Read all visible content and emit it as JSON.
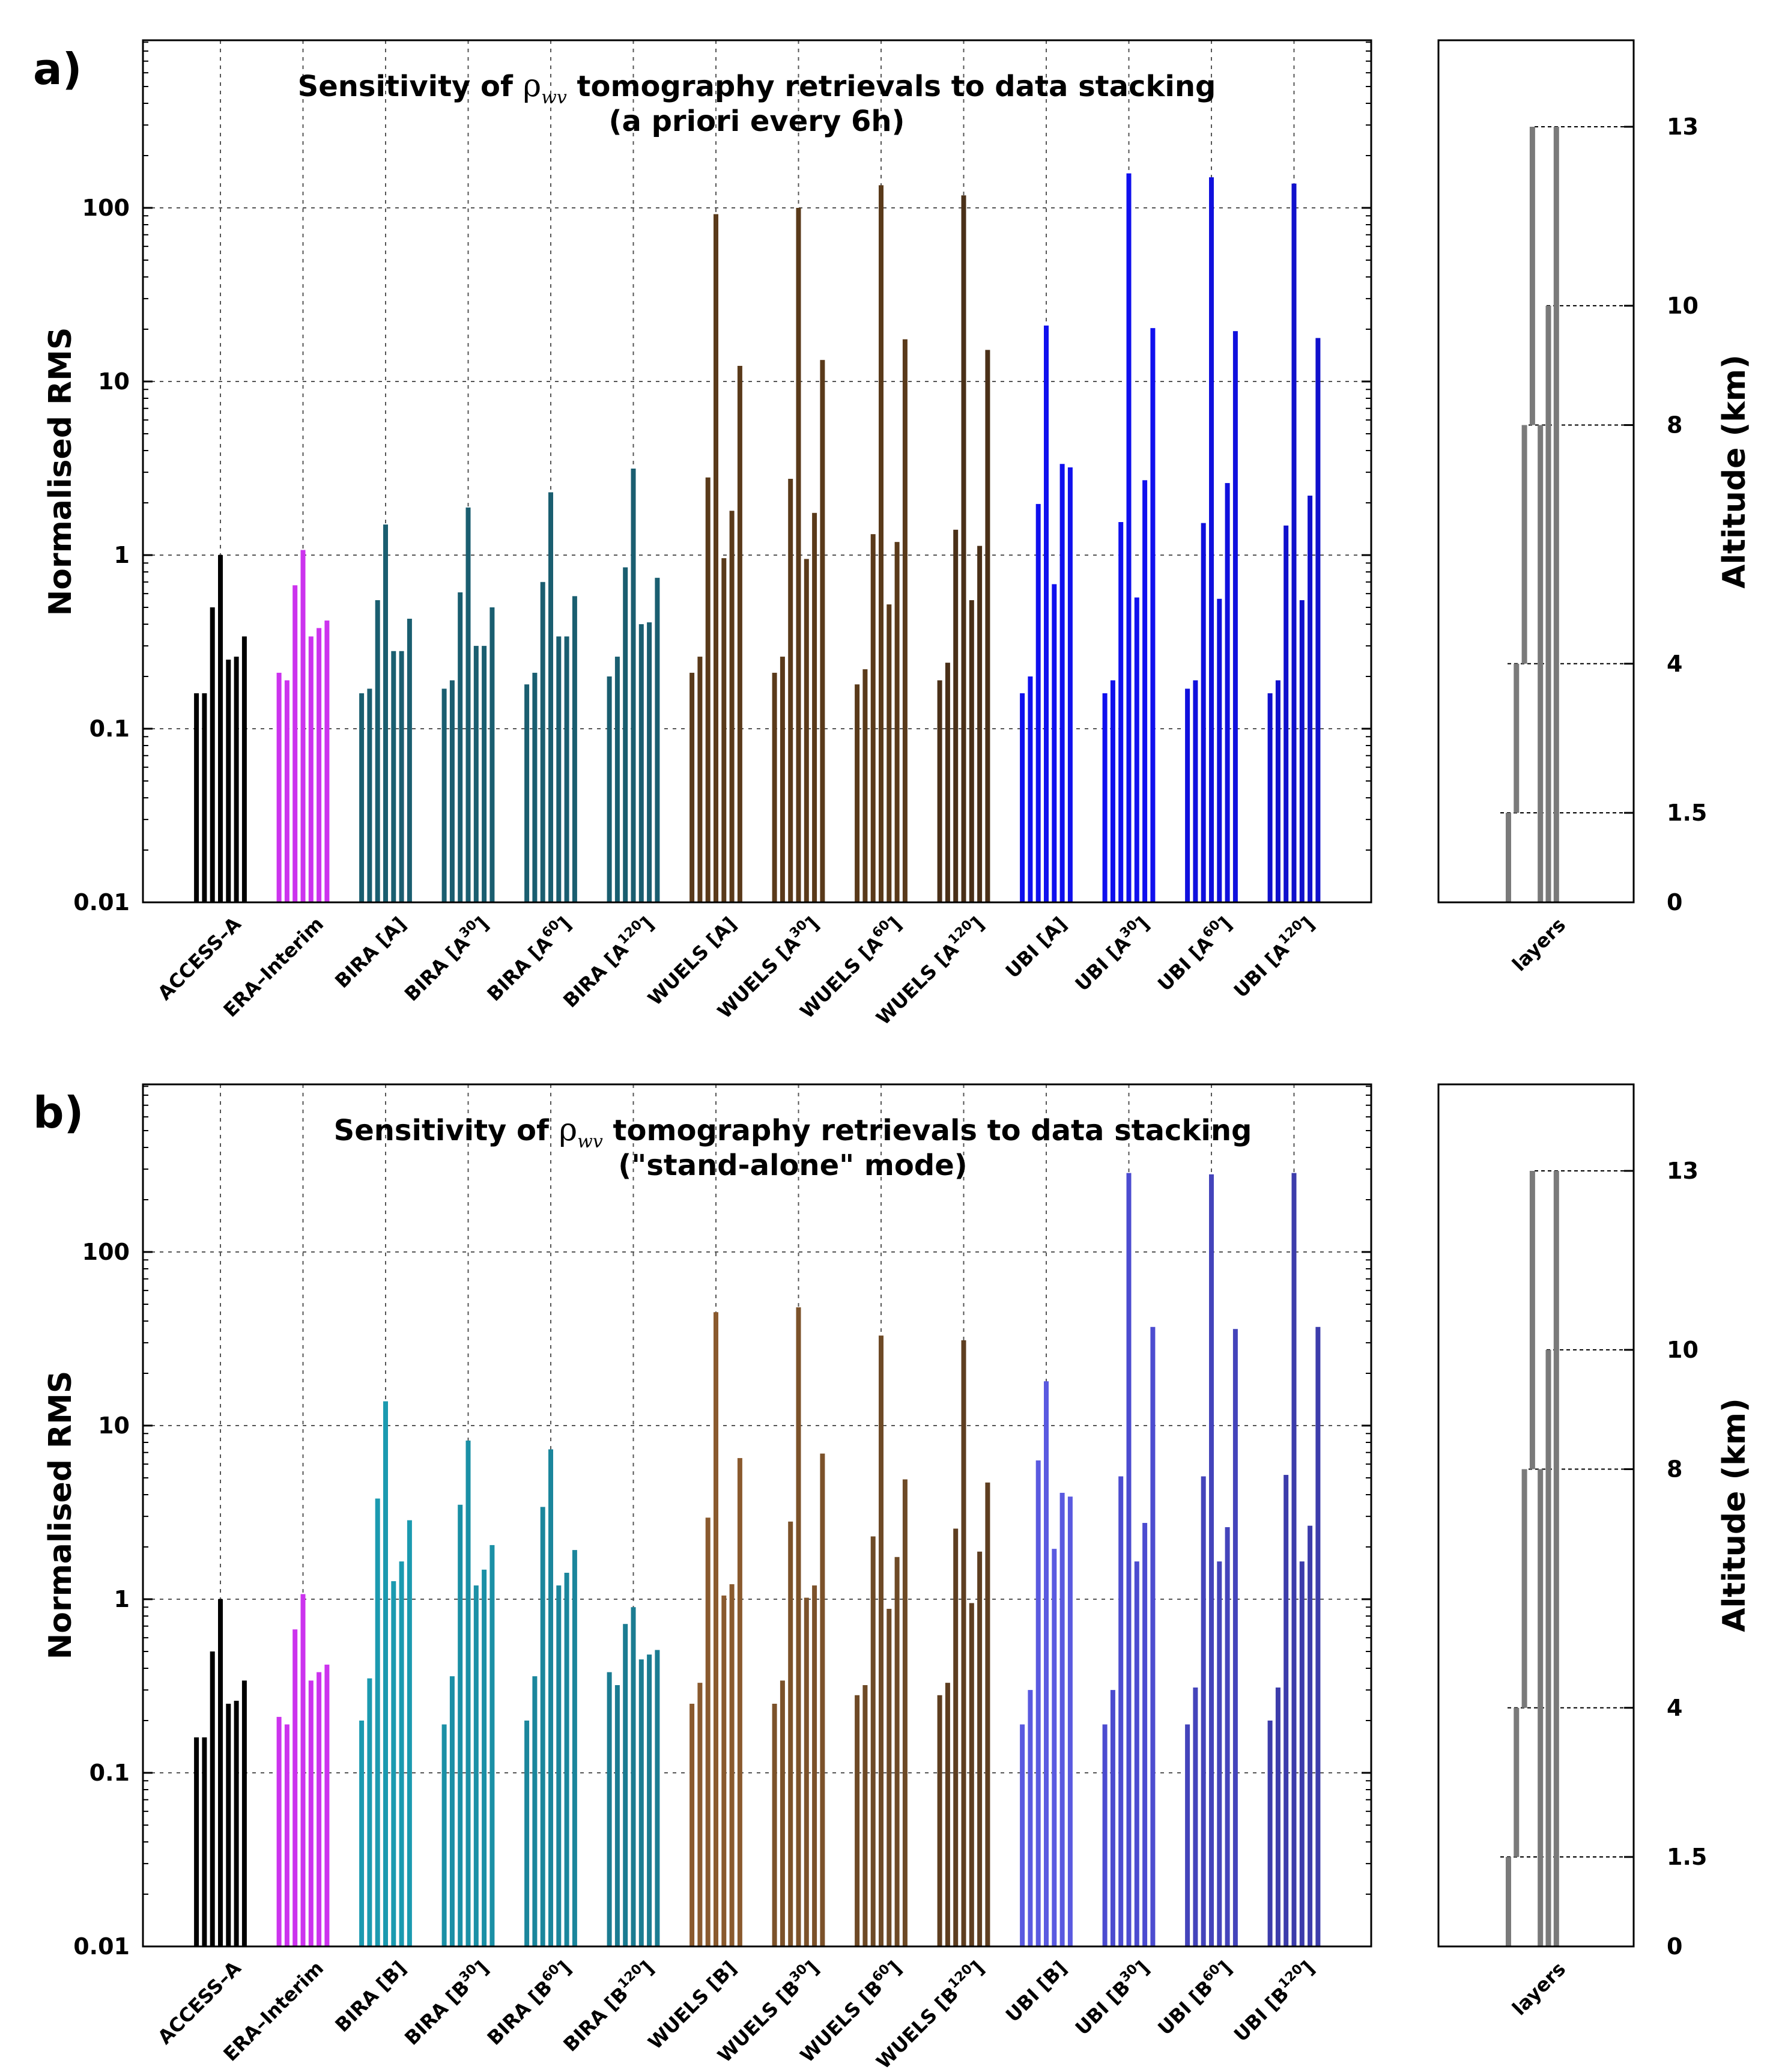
{
  "panels": [
    {
      "label": "a)",
      "title_pre": "Sensitivity of ",
      "title_rho": "ρ",
      "title_sub": "wv",
      "title_post": " tomography retrievals to data stacking",
      "title_line2": "(a priori every 6h)",
      "ylabel": "Normalised RMS",
      "right_axis_label": "Altitude (km)",
      "layers_label": "layers",
      "y_ticks": [
        "0.01",
        "0.1",
        "1",
        "10",
        "100"
      ],
      "alt_ticks": [
        "0",
        "1.5",
        "4",
        "8",
        "10",
        "13"
      ],
      "categories": [
        {
          "label": "ACCESS–A",
          "base": "ACCESS–A",
          "sup": "",
          "tail": ""
        },
        {
          "label": "ERA–Interim",
          "base": "ERA–Interim",
          "sup": "",
          "tail": ""
        },
        {
          "label": "BIRA [A]",
          "base": "BIRA [A]",
          "sup": "",
          "tail": ""
        },
        {
          "label": "BIRA [A30]",
          "base": "BIRA [A",
          "sup": "30",
          "tail": "]"
        },
        {
          "label": "BIRA [A60]",
          "base": "BIRA [A",
          "sup": "60",
          "tail": "]"
        },
        {
          "label": "BIRA [A120]",
          "base": "BIRA [A",
          "sup": "120",
          "tail": "]"
        },
        {
          "label": "WUELS [A]",
          "base": "WUELS [A]",
          "sup": "",
          "tail": ""
        },
        {
          "label": "WUELS [A30]",
          "base": "WUELS [A",
          "sup": "30",
          "tail": "]"
        },
        {
          "label": "WUELS [A60]",
          "base": "WUELS [A",
          "sup": "60",
          "tail": "]"
        },
        {
          "label": "WUELS [A120]",
          "base": "WUELS [A",
          "sup": "120",
          "tail": "]"
        },
        {
          "label": "UBI [A]",
          "base": "UBI [A]",
          "sup": "",
          "tail": ""
        },
        {
          "label": "UBI [A30]",
          "base": "UBI [A",
          "sup": "30",
          "tail": "]"
        },
        {
          "label": "UBI [A60]",
          "base": "UBI [A",
          "sup": "60",
          "tail": "]"
        },
        {
          "label": "UBI [A120]",
          "base": "UBI [A",
          "sup": "120",
          "tail": "]"
        }
      ]
    },
    {
      "label": "b)",
      "title_pre": "Sensitivity of  ",
      "title_rho": "ρ",
      "title_sub": "wv",
      "title_post": " tomography retrievals to data stacking",
      "title_line2": "(\"stand-alone\" mode)",
      "ylabel": "Normalised RMS",
      "right_axis_label": "Altitude (km)",
      "layers_label": "layers",
      "y_ticks": [
        "0.01",
        "0.1",
        "1",
        "10",
        "100"
      ],
      "alt_ticks": [
        "0",
        "1.5",
        "4",
        "8",
        "10",
        "13"
      ],
      "categories": [
        {
          "label": "ACCESS–A",
          "base": "ACCESS–A",
          "sup": "",
          "tail": ""
        },
        {
          "label": "ERA–Interim",
          "base": "ERA–Interim",
          "sup": "",
          "tail": ""
        },
        {
          "label": "BIRA [B]",
          "base": "BIRA [B]",
          "sup": "",
          "tail": ""
        },
        {
          "label": "BIRA [B30]",
          "base": "BIRA [B",
          "sup": "30",
          "tail": "]"
        },
        {
          "label": "BIRA [B60]",
          "base": "BIRA [B",
          "sup": "60",
          "tail": "]"
        },
        {
          "label": "BIRA [B120]",
          "base": "BIRA [B",
          "sup": "120",
          "tail": "]"
        },
        {
          "label": "WUELS [B]",
          "base": "WUELS [B]",
          "sup": "",
          "tail": ""
        },
        {
          "label": "WUELS [B30]",
          "base": "WUELS [B",
          "sup": "30",
          "tail": "]"
        },
        {
          "label": "WUELS [B60]",
          "base": "WUELS [B",
          "sup": "60",
          "tail": "]"
        },
        {
          "label": "WUELS [B120]",
          "base": "WUELS [B",
          "sup": "120",
          "tail": "]"
        },
        {
          "label": "UBI [B]",
          "base": "UBI [B]",
          "sup": "",
          "tail": ""
        },
        {
          "label": "UBI [B30]",
          "base": "UBI [B",
          "sup": "30",
          "tail": "]"
        },
        {
          "label": "UBI [B60]",
          "base": "UBI [B",
          "sup": "60",
          "tail": "]"
        },
        {
          "label": "UBI [B120]",
          "base": "UBI [B",
          "sup": "120",
          "tail": "]"
        }
      ]
    }
  ],
  "chart_data": [
    {
      "type": "bar",
      "title": "Sensitivity of ρwv tomography retrievals to data stacking (a priori every 6h)",
      "xlabel": "",
      "ylabel": "Normalised RMS",
      "yscale": "log",
      "ylim": [
        0.01,
        900
      ],
      "grid": true,
      "bars_per_group": "7 layers (0-1.5, 1.5-4, 4-8, 8-10, 10-13 km and wider layers)",
      "categories": [
        "ACCESS–A",
        "ERA–Interim",
        "BIRA [A]",
        "BIRA [A30]",
        "BIRA [A60]",
        "BIRA [A120]",
        "WUELS [A]",
        "WUELS [A30]",
        "WUELS [A60]",
        "WUELS [A120]",
        "UBI [A]",
        "UBI [A30]",
        "UBI [A60]",
        "UBI [A120]"
      ],
      "colors": [
        "#000000",
        "#cc33ee",
        "#1a5e70",
        "#1a5e70",
        "#1a5e70",
        "#1a5e70",
        "#5a3a1a",
        "#5a3a1a",
        "#5a3a1a",
        "#4a3018",
        "#1010ee",
        "#1010ee",
        "#1010dd",
        "#1010cc"
      ],
      "values": [
        [
          0.16,
          0.16,
          0.5,
          1.0,
          0.25,
          0.26,
          0.34
        ],
        [
          0.21,
          0.19,
          0.67,
          1.07,
          0.34,
          0.38,
          0.42
        ],
        [
          0.16,
          0.17,
          0.55,
          1.5,
          0.28,
          0.28,
          0.43
        ],
        [
          0.17,
          0.19,
          0.61,
          1.88,
          0.3,
          0.3,
          0.5
        ],
        [
          0.18,
          0.21,
          0.7,
          2.3,
          0.34,
          0.34,
          0.58
        ],
        [
          0.2,
          0.26,
          0.85,
          3.15,
          0.4,
          0.41,
          0.74
        ],
        [
          0.21,
          0.26,
          2.8,
          92,
          0.96,
          1.8,
          12.3
        ],
        [
          0.21,
          0.26,
          2.75,
          100,
          0.95,
          1.75,
          13.3
        ],
        [
          0.18,
          0.22,
          1.32,
          135,
          0.52,
          1.19,
          17.5
        ],
        [
          0.19,
          0.24,
          1.4,
          118,
          0.55,
          1.13,
          15.2
        ],
        [
          0.16,
          0.2,
          1.97,
          21,
          0.68,
          3.35,
          3.2
        ],
        [
          0.16,
          0.19,
          1.55,
          158,
          0.57,
          2.7,
          20.3
        ],
        [
          0.17,
          0.19,
          1.53,
          150,
          0.56,
          2.6,
          19.5
        ],
        [
          0.16,
          0.19,
          1.48,
          138,
          0.55,
          2.2,
          17.8
        ]
      ]
    },
    {
      "type": "bar",
      "title": "Sensitivity of ρwv tomography retrievals to data stacking (\"stand-alone\" mode)",
      "xlabel": "",
      "ylabel": "Normalised RMS",
      "yscale": "log",
      "ylim": [
        0.01,
        900
      ],
      "grid": true,
      "categories": [
        "ACCESS–A",
        "ERA–Interim",
        "BIRA [B]",
        "BIRA [B30]",
        "BIRA [B60]",
        "BIRA [B120]",
        "WUELS [B]",
        "WUELS [B30]",
        "WUELS [B60]",
        "WUELS [B120]",
        "UBI [B]",
        "UBI [B30]",
        "UBI [B60]",
        "UBI [B120]"
      ],
      "colors": [
        "#000000",
        "#cc33ee",
        "#1b9ab0",
        "#1b90a6",
        "#1b869c",
        "#1b7c92",
        "#8a5a2e",
        "#7c522a",
        "#6e4a26",
        "#5e3e20",
        "#5a5ae0",
        "#4c4cd0",
        "#4444bb",
        "#3c3cab"
      ],
      "values": [
        [
          0.16,
          0.16,
          0.5,
          1.0,
          0.25,
          0.26,
          0.34
        ],
        [
          0.21,
          0.19,
          0.67,
          1.07,
          0.34,
          0.38,
          0.42
        ],
        [
          0.2,
          0.35,
          3.8,
          13.8,
          1.27,
          1.65,
          2.85
        ],
        [
          0.19,
          0.36,
          3.5,
          8.2,
          1.2,
          1.48,
          2.05
        ],
        [
          0.2,
          0.36,
          3.4,
          7.3,
          1.2,
          1.42,
          1.92
        ],
        [
          0.38,
          0.32,
          0.72,
          0.9,
          0.45,
          0.48,
          0.51
        ],
        [
          0.25,
          0.33,
          2.95,
          45,
          1.05,
          1.22,
          6.5
        ],
        [
          0.25,
          0.34,
          2.8,
          48,
          1.02,
          1.2,
          6.9
        ],
        [
          0.28,
          0.32,
          2.3,
          33,
          0.88,
          1.75,
          4.9
        ],
        [
          0.28,
          0.33,
          2.55,
          31,
          0.95,
          1.88,
          4.7
        ],
        [
          0.19,
          0.3,
          6.3,
          18,
          1.95,
          4.1,
          3.9
        ],
        [
          0.19,
          0.3,
          5.1,
          285,
          1.65,
          2.75,
          37
        ],
        [
          0.19,
          0.31,
          5.1,
          280,
          1.65,
          2.6,
          36
        ],
        [
          0.2,
          0.31,
          5.2,
          285,
          1.65,
          2.65,
          37
        ]
      ]
    }
  ]
}
